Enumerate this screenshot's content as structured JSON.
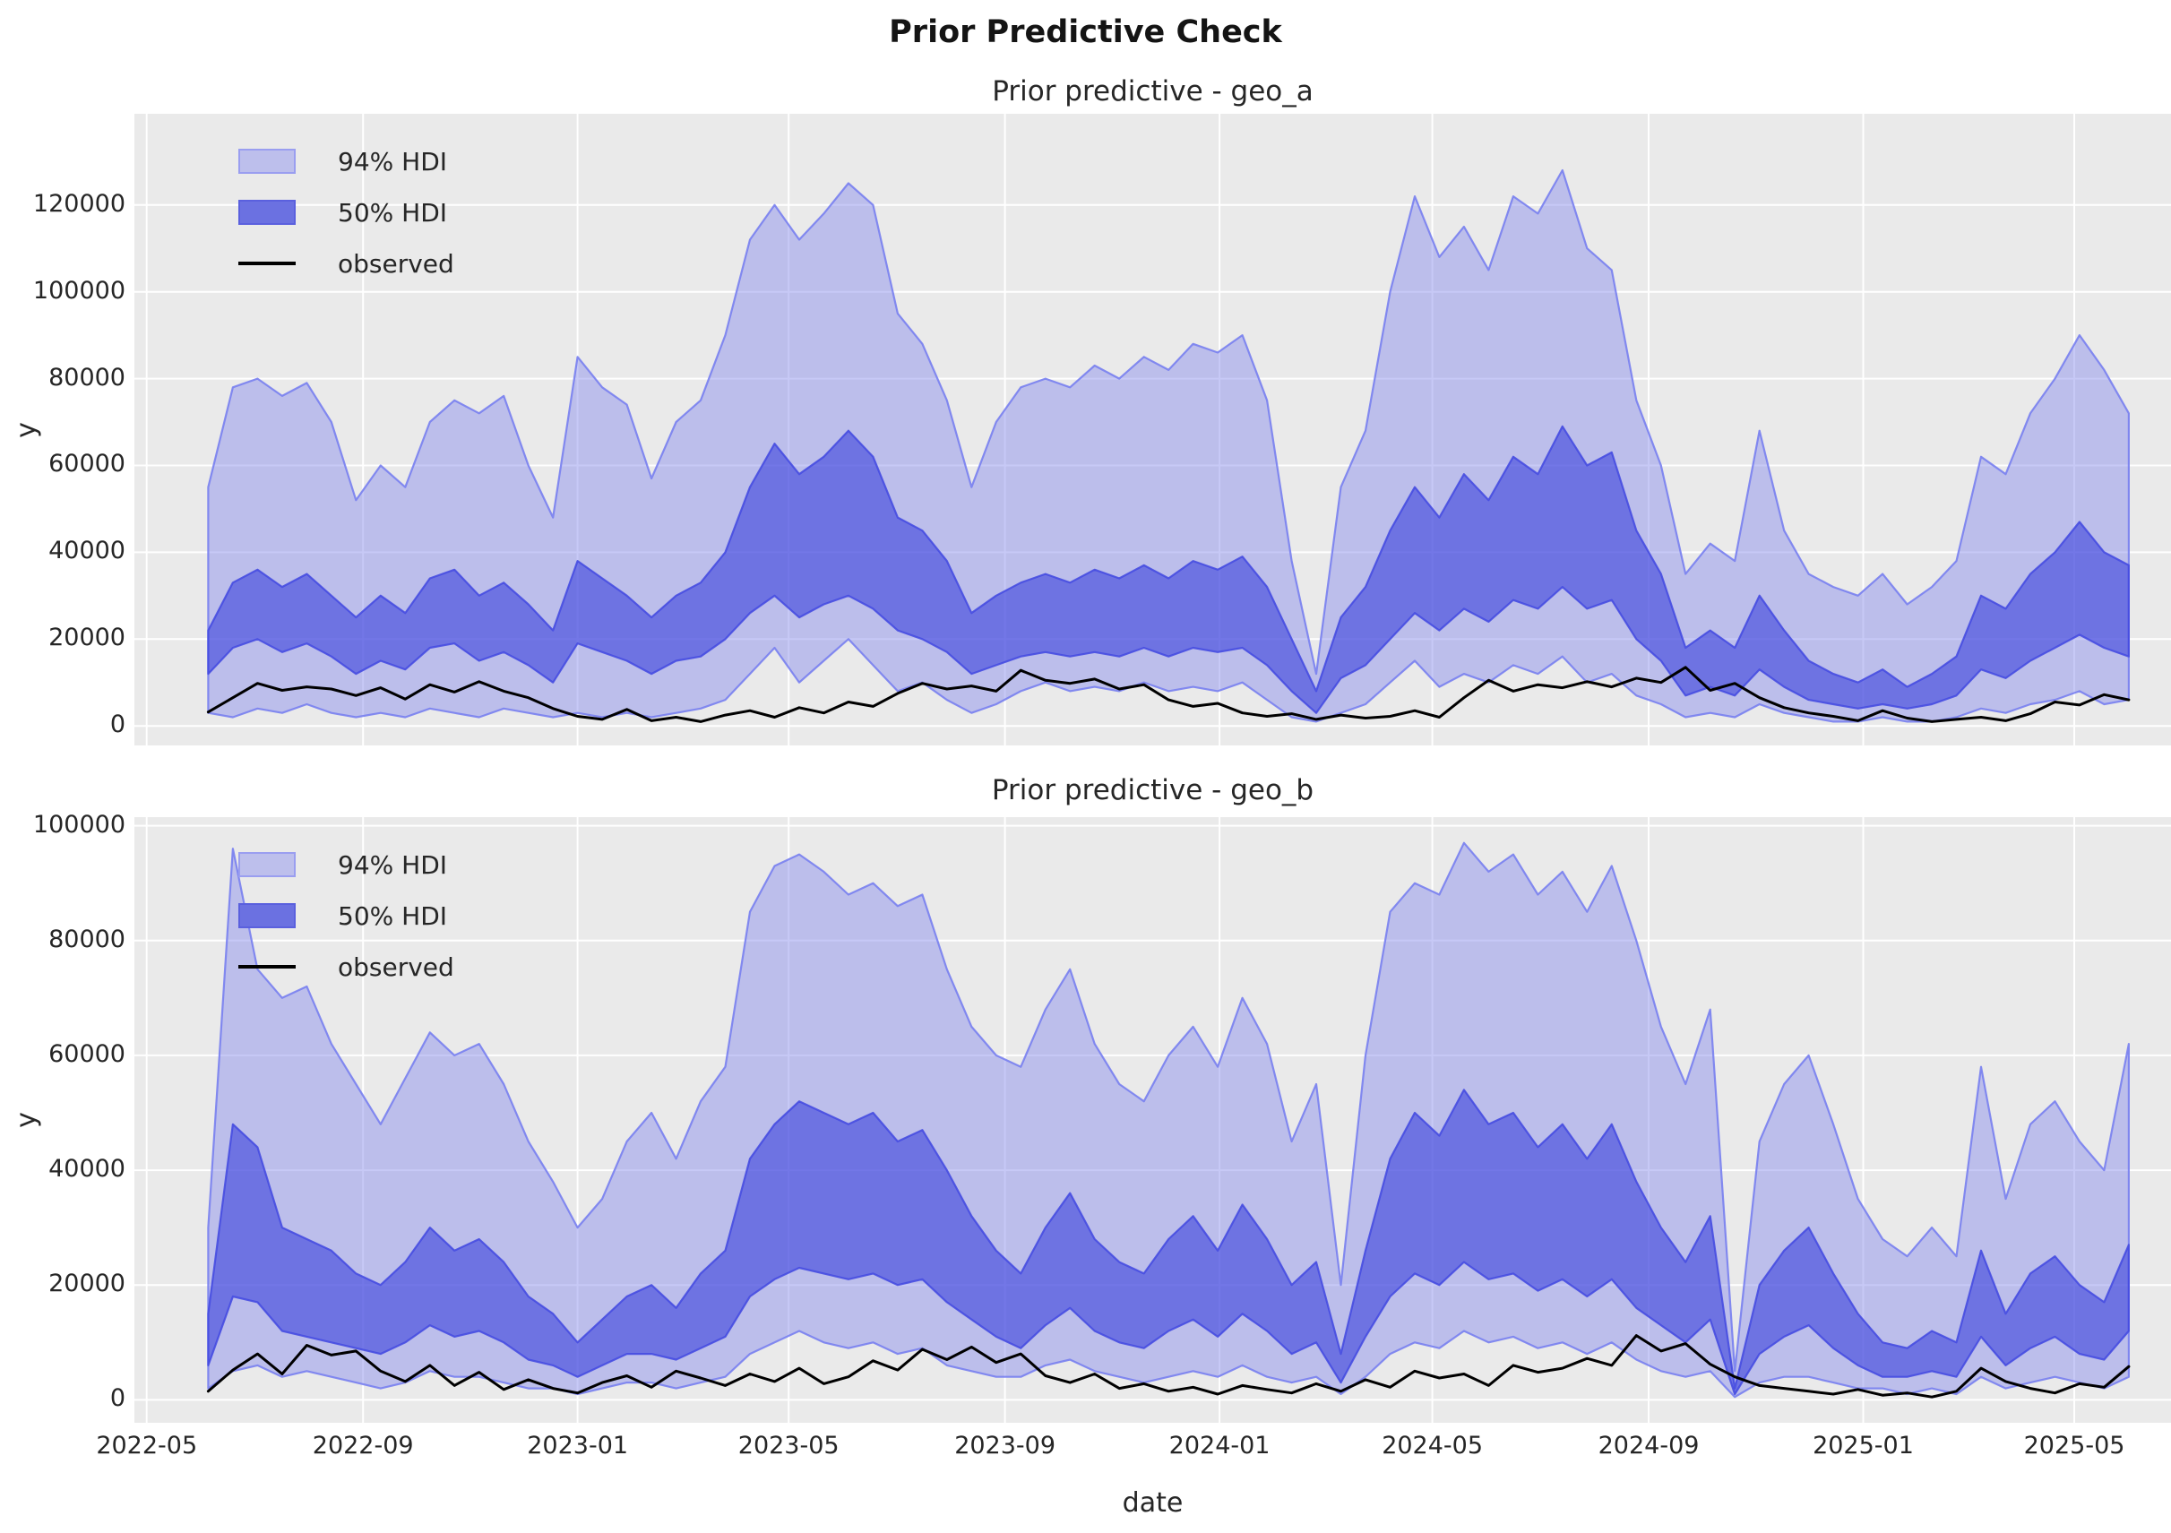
{
  "figure": {
    "title": "Prior Predictive Check"
  },
  "axes": {
    "xlabel": "date",
    "ylabel": "y"
  },
  "legend": {
    "items": [
      {
        "label": "94% HDI",
        "swatch": "hdi94"
      },
      {
        "label": "50% HDI",
        "swatch": "hdi50"
      },
      {
        "label": "observed",
        "swatch": "line"
      }
    ]
  },
  "colors": {
    "panel_bg": "#eaeaea",
    "grid": "#ffffff",
    "hdi94_fill": "rgba(133,138,235,0.46)",
    "hdi94_edge": "rgba(120,127,240,0.9)",
    "hdi50_fill": "rgba(63,70,221,0.62)",
    "hdi50_edge": "rgba(70,77,225,0.9)",
    "observed": "#000000",
    "text": "#262626"
  },
  "chart_data": {
    "type": "area",
    "x_domain": [
      "2022-04-24",
      "2025-06-25"
    ],
    "x_ticks": [
      {
        "date": "2022-05-01",
        "label": "2022-05"
      },
      {
        "date": "2022-09-01",
        "label": "2022-09"
      },
      {
        "date": "2023-01-01",
        "label": "2023-01"
      },
      {
        "date": "2023-05-01",
        "label": "2023-05"
      },
      {
        "date": "2023-09-01",
        "label": "2023-09"
      },
      {
        "date": "2024-01-01",
        "label": "2024-01"
      },
      {
        "date": "2024-05-01",
        "label": "2024-05"
      },
      {
        "date": "2024-09-01",
        "label": "2024-09"
      },
      {
        "date": "2025-01-01",
        "label": "2025-01"
      },
      {
        "date": "2025-05-01",
        "label": "2025-05"
      }
    ],
    "x_dates": [
      "2022-06-05",
      "2022-06-19",
      "2022-07-03",
      "2022-07-17",
      "2022-07-31",
      "2022-08-14",
      "2022-08-28",
      "2022-09-11",
      "2022-09-25",
      "2022-10-09",
      "2022-10-23",
      "2022-11-06",
      "2022-11-20",
      "2022-12-04",
      "2022-12-18",
      "2023-01-01",
      "2023-01-15",
      "2023-01-29",
      "2023-02-12",
      "2023-02-26",
      "2023-03-12",
      "2023-03-26",
      "2023-04-09",
      "2023-04-23",
      "2023-05-07",
      "2023-05-21",
      "2023-06-04",
      "2023-06-18",
      "2023-07-02",
      "2023-07-16",
      "2023-07-30",
      "2023-08-13",
      "2023-08-27",
      "2023-09-10",
      "2023-09-24",
      "2023-10-08",
      "2023-10-22",
      "2023-11-05",
      "2023-11-19",
      "2023-12-03",
      "2023-12-17",
      "2023-12-31",
      "2024-01-14",
      "2024-01-28",
      "2024-02-11",
      "2024-02-25",
      "2024-03-10",
      "2024-03-24",
      "2024-04-07",
      "2024-04-21",
      "2024-05-05",
      "2024-05-19",
      "2024-06-02",
      "2024-06-16",
      "2024-06-30",
      "2024-07-14",
      "2024-07-28",
      "2024-08-11",
      "2024-08-25",
      "2024-09-08",
      "2024-09-22",
      "2024-10-06",
      "2024-10-20",
      "2024-11-03",
      "2024-11-17",
      "2024-12-01",
      "2024-12-15",
      "2024-12-29",
      "2025-01-12",
      "2025-01-26",
      "2025-02-09",
      "2025-02-23",
      "2025-03-09",
      "2025-03-23",
      "2025-04-06",
      "2025-04-20",
      "2025-05-04",
      "2025-05-18",
      "2025-06-01"
    ],
    "subplots": [
      {
        "title": "Prior predictive - geo_a",
        "ylabel": "y",
        "ylim": [
          -4500,
          141000
        ],
        "y_ticks": [
          0,
          20000,
          40000,
          60000,
          80000,
          100000,
          120000
        ],
        "series": {
          "hdi94_upper": [
            55000,
            78000,
            80000,
            76000,
            79000,
            70000,
            52000,
            60000,
            55000,
            70000,
            75000,
            72000,
            76000,
            60000,
            48000,
            85000,
            78000,
            74000,
            57000,
            70000,
            75000,
            90000,
            112000,
            120000,
            112000,
            118000,
            125000,
            120000,
            95000,
            88000,
            75000,
            55000,
            70000,
            78000,
            80000,
            78000,
            83000,
            80000,
            85000,
            82000,
            88000,
            86000,
            90000,
            75000,
            38000,
            12000,
            55000,
            68000,
            100000,
            122000,
            108000,
            115000,
            105000,
            122000,
            118000,
            128000,
            110000,
            105000,
            75000,
            60000,
            35000,
            42000,
            38000,
            68000,
            45000,
            35000,
            32000,
            30000,
            35000,
            28000,
            32000,
            38000,
            62000,
            58000,
            72000,
            80000,
            90000,
            82000,
            72000
          ],
          "hdi94_lower": [
            3000,
            2000,
            4000,
            3000,
            5000,
            3000,
            2000,
            3000,
            2000,
            4000,
            3000,
            2000,
            4000,
            3000,
            2000,
            3000,
            2000,
            3000,
            2000,
            3000,
            4000,
            6000,
            12000,
            18000,
            10000,
            15000,
            20000,
            14000,
            8000,
            10000,
            6000,
            3000,
            5000,
            8000,
            10000,
            8000,
            9000,
            8000,
            10000,
            8000,
            9000,
            8000,
            10000,
            6000,
            2000,
            1000,
            3000,
            5000,
            10000,
            15000,
            9000,
            12000,
            10000,
            14000,
            12000,
            16000,
            10000,
            12000,
            7000,
            5000,
            2000,
            3000,
            2000,
            5000,
            3000,
            2000,
            1000,
            1000,
            2000,
            1000,
            1000,
            2000,
            4000,
            3000,
            5000,
            6000,
            8000,
            5000,
            6000
          ],
          "hdi50_upper": [
            22000,
            33000,
            36000,
            32000,
            35000,
            30000,
            25000,
            30000,
            26000,
            34000,
            36000,
            30000,
            33000,
            28000,
            22000,
            38000,
            34000,
            30000,
            25000,
            30000,
            33000,
            40000,
            55000,
            65000,
            58000,
            62000,
            68000,
            62000,
            48000,
            45000,
            38000,
            26000,
            30000,
            33000,
            35000,
            33000,
            36000,
            34000,
            37000,
            34000,
            38000,
            36000,
            39000,
            32000,
            20000,
            8000,
            25000,
            32000,
            45000,
            55000,
            48000,
            58000,
            52000,
            62000,
            58000,
            69000,
            60000,
            63000,
            45000,
            35000,
            18000,
            22000,
            18000,
            30000,
            22000,
            15000,
            12000,
            10000,
            13000,
            9000,
            12000,
            16000,
            30000,
            27000,
            35000,
            40000,
            47000,
            40000,
            37000
          ],
          "hdi50_lower": [
            12000,
            18000,
            20000,
            17000,
            19000,
            16000,
            12000,
            15000,
            13000,
            18000,
            19000,
            15000,
            17000,
            14000,
            10000,
            19000,
            17000,
            15000,
            12000,
            15000,
            16000,
            20000,
            26000,
            30000,
            25000,
            28000,
            30000,
            27000,
            22000,
            20000,
            17000,
            12000,
            14000,
            16000,
            17000,
            16000,
            17000,
            16000,
            18000,
            16000,
            18000,
            17000,
            18000,
            14000,
            8000,
            3000,
            11000,
            14000,
            20000,
            26000,
            22000,
            27000,
            24000,
            29000,
            27000,
            32000,
            27000,
            29000,
            20000,
            15000,
            7000,
            9000,
            7000,
            13000,
            9000,
            6000,
            5000,
            4000,
            5000,
            4000,
            5000,
            7000,
            13000,
            11000,
            15000,
            18000,
            21000,
            18000,
            16000
          ],
          "observed": [
            3200,
            6500,
            9800,
            8200,
            9000,
            8500,
            7000,
            8800,
            6200,
            9500,
            7800,
            10200,
            8000,
            6500,
            4000,
            2200,
            1500,
            3800,
            1200,
            2000,
            1000,
            2500,
            3500,
            2000,
            4200,
            3000,
            5500,
            4500,
            7500,
            9800,
            8500,
            9200,
            8000,
            12800,
            10500,
            9800,
            10800,
            8500,
            9500,
            6000,
            4500,
            5200,
            3000,
            2200,
            2800,
            1500,
            2500,
            1800,
            2200,
            3500,
            2000,
            6500,
            10500,
            8000,
            9500,
            8800,
            10200,
            9000,
            11000,
            10000,
            13500,
            8200,
            9800,
            6500,
            4200,
            3000,
            2200,
            1200,
            3500,
            1800,
            1000,
            1500,
            2000,
            1200,
            2800,
            5500,
            4800,
            7200,
            6000
          ]
        }
      },
      {
        "title": "Prior predictive - geo_b",
        "ylabel": "y",
        "ylim": [
          -4000,
          101500
        ],
        "y_ticks": [
          0,
          20000,
          40000,
          60000,
          80000,
          100000
        ],
        "series": {
          "hdi94_upper": [
            30000,
            96000,
            75000,
            70000,
            72000,
            62000,
            55000,
            48000,
            56000,
            64000,
            60000,
            62000,
            55000,
            45000,
            38000,
            30000,
            35000,
            45000,
            50000,
            42000,
            52000,
            58000,
            85000,
            93000,
            95000,
            92000,
            88000,
            90000,
            86000,
            88000,
            75000,
            65000,
            60000,
            58000,
            68000,
            75000,
            62000,
            55000,
            52000,
            60000,
            65000,
            58000,
            70000,
            62000,
            45000,
            55000,
            20000,
            60000,
            85000,
            90000,
            88000,
            97000,
            92000,
            95000,
            88000,
            92000,
            85000,
            93000,
            80000,
            65000,
            55000,
            68000,
            5000,
            45000,
            55000,
            60000,
            48000,
            35000,
            28000,
            25000,
            30000,
            25000,
            58000,
            35000,
            48000,
            52000,
            45000,
            40000,
            62000
          ],
          "hdi94_lower": [
            2000,
            5000,
            6000,
            4000,
            5000,
            4000,
            3000,
            2000,
            3000,
            5000,
            4000,
            4000,
            3000,
            2000,
            2000,
            1000,
            2000,
            3000,
            3000,
            2000,
            3000,
            4000,
            8000,
            10000,
            12000,
            10000,
            9000,
            10000,
            8000,
            9000,
            6000,
            5000,
            4000,
            4000,
            6000,
            7000,
            5000,
            4000,
            3000,
            4000,
            5000,
            4000,
            6000,
            4000,
            3000,
            4000,
            1000,
            4000,
            8000,
            10000,
            9000,
            12000,
            10000,
            11000,
            9000,
            10000,
            8000,
            10000,
            7000,
            5000,
            4000,
            5000,
            500,
            3000,
            4000,
            4000,
            3000,
            2000,
            2000,
            1000,
            2000,
            1000,
            4000,
            2000,
            3000,
            4000,
            3000,
            2000,
            4000
          ],
          "hdi50_upper": [
            15000,
            48000,
            44000,
            30000,
            28000,
            26000,
            22000,
            20000,
            24000,
            30000,
            26000,
            28000,
            24000,
            18000,
            15000,
            10000,
            14000,
            18000,
            20000,
            16000,
            22000,
            26000,
            42000,
            48000,
            52000,
            50000,
            48000,
            50000,
            45000,
            47000,
            40000,
            32000,
            26000,
            22000,
            30000,
            36000,
            28000,
            24000,
            22000,
            28000,
            32000,
            26000,
            34000,
            28000,
            20000,
            24000,
            8000,
            26000,
            42000,
            50000,
            46000,
            54000,
            48000,
            50000,
            44000,
            48000,
            42000,
            48000,
            38000,
            30000,
            24000,
            32000,
            2000,
            20000,
            26000,
            30000,
            22000,
            15000,
            10000,
            9000,
            12000,
            10000,
            26000,
            15000,
            22000,
            25000,
            20000,
            17000,
            27000
          ],
          "hdi50_lower": [
            6000,
            18000,
            17000,
            12000,
            11000,
            10000,
            9000,
            8000,
            10000,
            13000,
            11000,
            12000,
            10000,
            7000,
            6000,
            4000,
            6000,
            8000,
            8000,
            7000,
            9000,
            11000,
            18000,
            21000,
            23000,
            22000,
            21000,
            22000,
            20000,
            21000,
            17000,
            14000,
            11000,
            9000,
            13000,
            16000,
            12000,
            10000,
            9000,
            12000,
            14000,
            11000,
            15000,
            12000,
            8000,
            10000,
            3000,
            11000,
            18000,
            22000,
            20000,
            24000,
            21000,
            22000,
            19000,
            21000,
            18000,
            21000,
            16000,
            13000,
            10000,
            14000,
            1000,
            8000,
            11000,
            13000,
            9000,
            6000,
            4000,
            4000,
            5000,
            4000,
            11000,
            6000,
            9000,
            11000,
            8000,
            7000,
            12000
          ],
          "observed": [
            1500,
            5200,
            8000,
            4500,
            9500,
            7800,
            8500,
            5000,
            3200,
            6000,
            2500,
            4800,
            1800,
            3500,
            2000,
            1200,
            3000,
            4200,
            2200,
            5000,
            3800,
            2500,
            4500,
            3200,
            5500,
            2800,
            4000,
            6800,
            5200,
            8800,
            7000,
            9200,
            6500,
            8000,
            4200,
            3000,
            4500,
            2000,
            2800,
            1500,
            2200,
            1000,
            2500,
            1800,
            1200,
            2800,
            1500,
            3500,
            2200,
            5000,
            3800,
            4500,
            2500,
            6000,
            4800,
            5500,
            7200,
            6000,
            11200,
            8500,
            9800,
            6200,
            4000,
            2500,
            2000,
            1500,
            1000,
            1800,
            800,
            1200,
            500,
            1500,
            5500,
            3200,
            2000,
            1200,
            2800,
            2200,
            5800
          ]
        }
      }
    ]
  }
}
